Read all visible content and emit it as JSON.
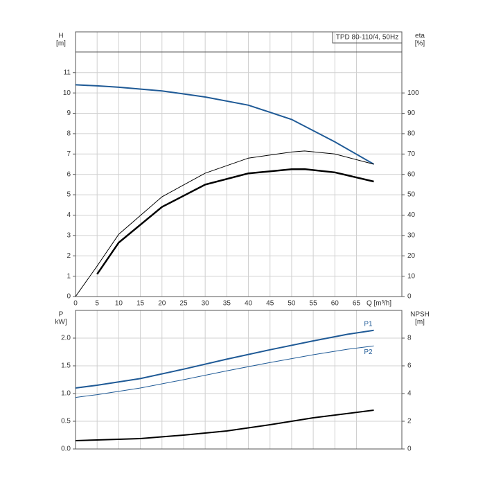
{
  "chart_data": [
    {
      "type": "line",
      "title": "TPD 80-110/4, 50Hz",
      "xlabel": "Q [m³/h]",
      "ylabel": "H",
      "yunit": "[m]",
      "y2label": "eta",
      "y2unit": "[%]",
      "xlim": [
        0,
        75.5
      ],
      "xticks": [
        0,
        5,
        10,
        15,
        20,
        25,
        30,
        35,
        40,
        45,
        50,
        55,
        60,
        65
      ],
      "ylim": [
        0,
        13
      ],
      "yticks": [
        0,
        1,
        2,
        3,
        4,
        5,
        6,
        7,
        8,
        9,
        10,
        11
      ],
      "y2lim": [
        0,
        130
      ],
      "y2ticks": [
        0,
        10,
        20,
        30,
        40,
        50,
        60,
        70,
        80,
        90,
        100
      ],
      "grid": true,
      "series": [
        {
          "color": "#1f5a96",
          "x": [
            0,
            5,
            10,
            20,
            30,
            40,
            50,
            60,
            69
          ],
          "values": [
            10.4,
            10.35,
            10.28,
            10.1,
            9.8,
            9.4,
            8.7,
            7.6,
            6.5
          ]
        },
        {
          "color": "#000000",
          "axis": "y2",
          "x": [
            0,
            5,
            10,
            20,
            30,
            40,
            50,
            53,
            60,
            69
          ],
          "values": [
            0,
            15,
            30.6,
            49,
            60.6,
            68,
            71,
            71.5,
            70,
            65
          ]
        },
        {
          "color": "#000000",
          "axis": "y2",
          "x": [
            5,
            10,
            20,
            30,
            40,
            50,
            53,
            60,
            69
          ],
          "values": [
            11,
            26.5,
            44,
            55,
            60.5,
            62.5,
            62.6,
            61,
            56.5
          ]
        }
      ]
    },
    {
      "type": "line",
      "ylabel": "P",
      "yunit": "kW]",
      "y2label": "NPSH",
      "y2unit": "[m]",
      "xlim": [
        0,
        75.5
      ],
      "ylim": [
        0,
        2.5
      ],
      "yticks": [
        {
          "value": 0,
          "label": "0.0"
        },
        0.5,
        {
          "value": 1,
          "label": "1.0"
        },
        1.5,
        {
          "value": 2,
          "label": "2.0"
        }
      ],
      "y2lim": [
        0,
        10
      ],
      "y2ticks": [
        0,
        2,
        4,
        6,
        8
      ],
      "grid": true,
      "series": [
        {
          "name": "P1",
          "color": "#1f5a96",
          "x": [
            0,
            5,
            15,
            25,
            35,
            45,
            55,
            63,
            69
          ],
          "values": [
            1.1,
            1.15,
            1.27,
            1.44,
            1.62,
            1.79,
            1.95,
            2.07,
            2.14
          ]
        },
        {
          "name": "P2",
          "color": "#1f5a96",
          "x": [
            0,
            5,
            15,
            25,
            35,
            45,
            55,
            63,
            69
          ],
          "values": [
            0.93,
            0.98,
            1.1,
            1.25,
            1.41,
            1.56,
            1.7,
            1.8,
            1.86
          ]
        },
        {
          "color": "#000000",
          "axis": "y2",
          "x": [
            0,
            5,
            15,
            25,
            35,
            45,
            55,
            69
          ],
          "values": [
            0.6,
            0.65,
            0.75,
            1.0,
            1.3,
            1.75,
            2.25,
            2.8
          ]
        }
      ]
    }
  ]
}
